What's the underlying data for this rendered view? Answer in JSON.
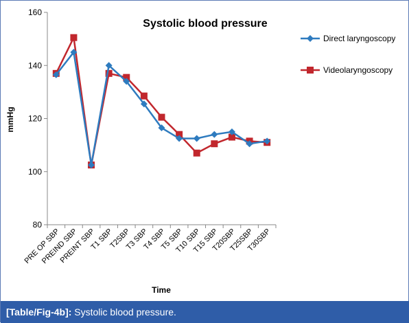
{
  "chart_data": {
    "type": "line",
    "title": "Systolic blood pressure",
    "xlabel": "Time",
    "ylabel": "mmHg",
    "ylim": [
      80,
      160
    ],
    "yticks": [
      80,
      100,
      120,
      140,
      160
    ],
    "grid": false,
    "legend_position": "right",
    "categories": [
      "PRE OP SBP",
      "PREIND SBP",
      "PREINT SBP",
      "T1 SBP",
      "T2SBP",
      "T3 SBP",
      "T4 SBP",
      "T5 SBP",
      "T10 SBP",
      "T15 SBP",
      "T20SBP",
      "T25SBP",
      "T30SBP"
    ],
    "series": [
      {
        "name": "Direct laryngoscopy",
        "color": "#2e7bbf",
        "marker": "diamond",
        "values": [
          136.5,
          145,
          102.5,
          140,
          134,
          125.5,
          116.5,
          112.5,
          112.5,
          114,
          115,
          110.5,
          111.5
        ]
      },
      {
        "name": "Videolaryngoscopy",
        "color": "#c1272d",
        "marker": "square",
        "values": [
          137,
          150.5,
          102.5,
          137,
          135.5,
          128.5,
          120.5,
          114,
          107,
          110.5,
          113,
          111.5,
          111
        ]
      }
    ]
  },
  "caption": {
    "ref": "[Table/Fig-4b]:",
    "text": " Systolic blood pressure."
  }
}
